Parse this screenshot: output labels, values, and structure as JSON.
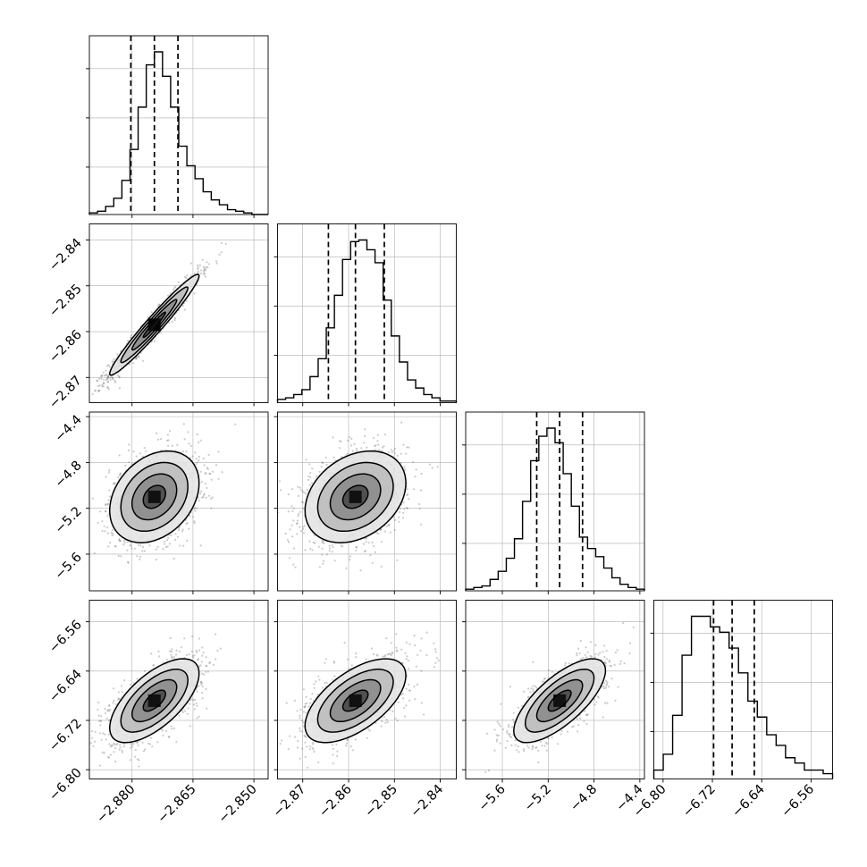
{
  "chart_data": {
    "type": "corner",
    "parameters": [
      {
        "ticks": [
          -2.88,
          -2.865,
          -2.85
        ],
        "tick_labels": [
          "−2.880",
          "−2.865",
          "−2.850"
        ],
        "range": [
          -2.8905,
          -2.8465
        ],
        "mean": -2.8745,
        "sigma": 0.0055
      },
      {
        "ticks": [
          -2.87,
          -2.86,
          -2.85,
          -2.84
        ],
        "tick_labels": [
          "−2.87",
          "−2.86",
          "−2.85",
          "−2.84"
        ],
        "range": [
          -2.8755,
          -2.8365
        ],
        "mean": -2.8585,
        "sigma": 0.0055
      },
      {
        "ticks": [
          -5.6,
          -5.2,
          -4.8,
          -4.4
        ],
        "tick_labels": [
          "−5.6",
          "−5.2",
          "−4.8",
          "−4.4"
        ],
        "range": [
          -5.92,
          -4.36
        ],
        "mean": -5.1,
        "sigma": 0.2
      },
      {
        "ticks": [
          -6.8,
          -6.72,
          -6.64,
          -6.56
        ],
        "tick_labels": [
          "−6.80",
          "−6.72",
          "−6.64",
          "−6.56"
        ],
        "range": [
          -6.815,
          -6.525
        ],
        "mean": -6.688,
        "sigma": 0.034
      }
    ],
    "histograms": [
      {
        "param": 0,
        "quantiles": [
          -2.8803,
          -2.8745,
          -2.8687
        ],
        "counts": [
          1,
          2,
          5,
          10,
          21,
          40,
          66,
          92,
          100,
          85,
          66,
          42,
          30,
          22,
          14,
          9,
          6,
          3,
          2,
          1,
          0,
          0
        ]
      },
      {
        "param": 1,
        "quantiles": [
          -2.8644,
          -2.8585,
          -2.8522
        ],
        "counts": [
          2,
          3,
          5,
          8,
          16,
          27,
          46,
          66,
          88,
          99,
          100,
          94,
          86,
          63,
          41,
          25,
          14,
          9,
          5,
          3,
          1,
          1
        ]
      },
      {
        "param": 2,
        "quantiles": [
          -5.3,
          -5.1,
          -4.9
        ],
        "counts": [
          1,
          2,
          3,
          7,
          12,
          20,
          32,
          55,
          80,
          95,
          100,
          91,
          72,
          52,
          33,
          26,
          21,
          14,
          8,
          4,
          2,
          1
        ]
      },
      {
        "param": 3,
        "quantiles": [
          -6.718,
          -6.688,
          -6.652
        ],
        "counts": [
          5,
          14,
          36,
          70,
          92,
          92,
          86,
          83,
          74,
          60,
          44,
          35,
          25,
          19,
          12,
          9,
          5,
          5,
          3
        ]
      }
    ],
    "pairs": [
      {
        "x": 0,
        "y": 1,
        "correlation": 0.97
      },
      {
        "x": 0,
        "y": 2,
        "correlation": 0.3
      },
      {
        "x": 1,
        "y": 2,
        "correlation": 0.3
      },
      {
        "x": 0,
        "y": 3,
        "correlation": 0.65
      },
      {
        "x": 1,
        "y": 3,
        "correlation": 0.6
      },
      {
        "x": 2,
        "y": 3,
        "correlation": 0.72
      }
    ],
    "contour_levels_sigma": [
      0.5,
      1,
      1.5,
      2
    ],
    "grid": true,
    "colors": {
      "line": "#000000",
      "points": "#6b6b6b",
      "grid": "#b0b0b0"
    }
  }
}
